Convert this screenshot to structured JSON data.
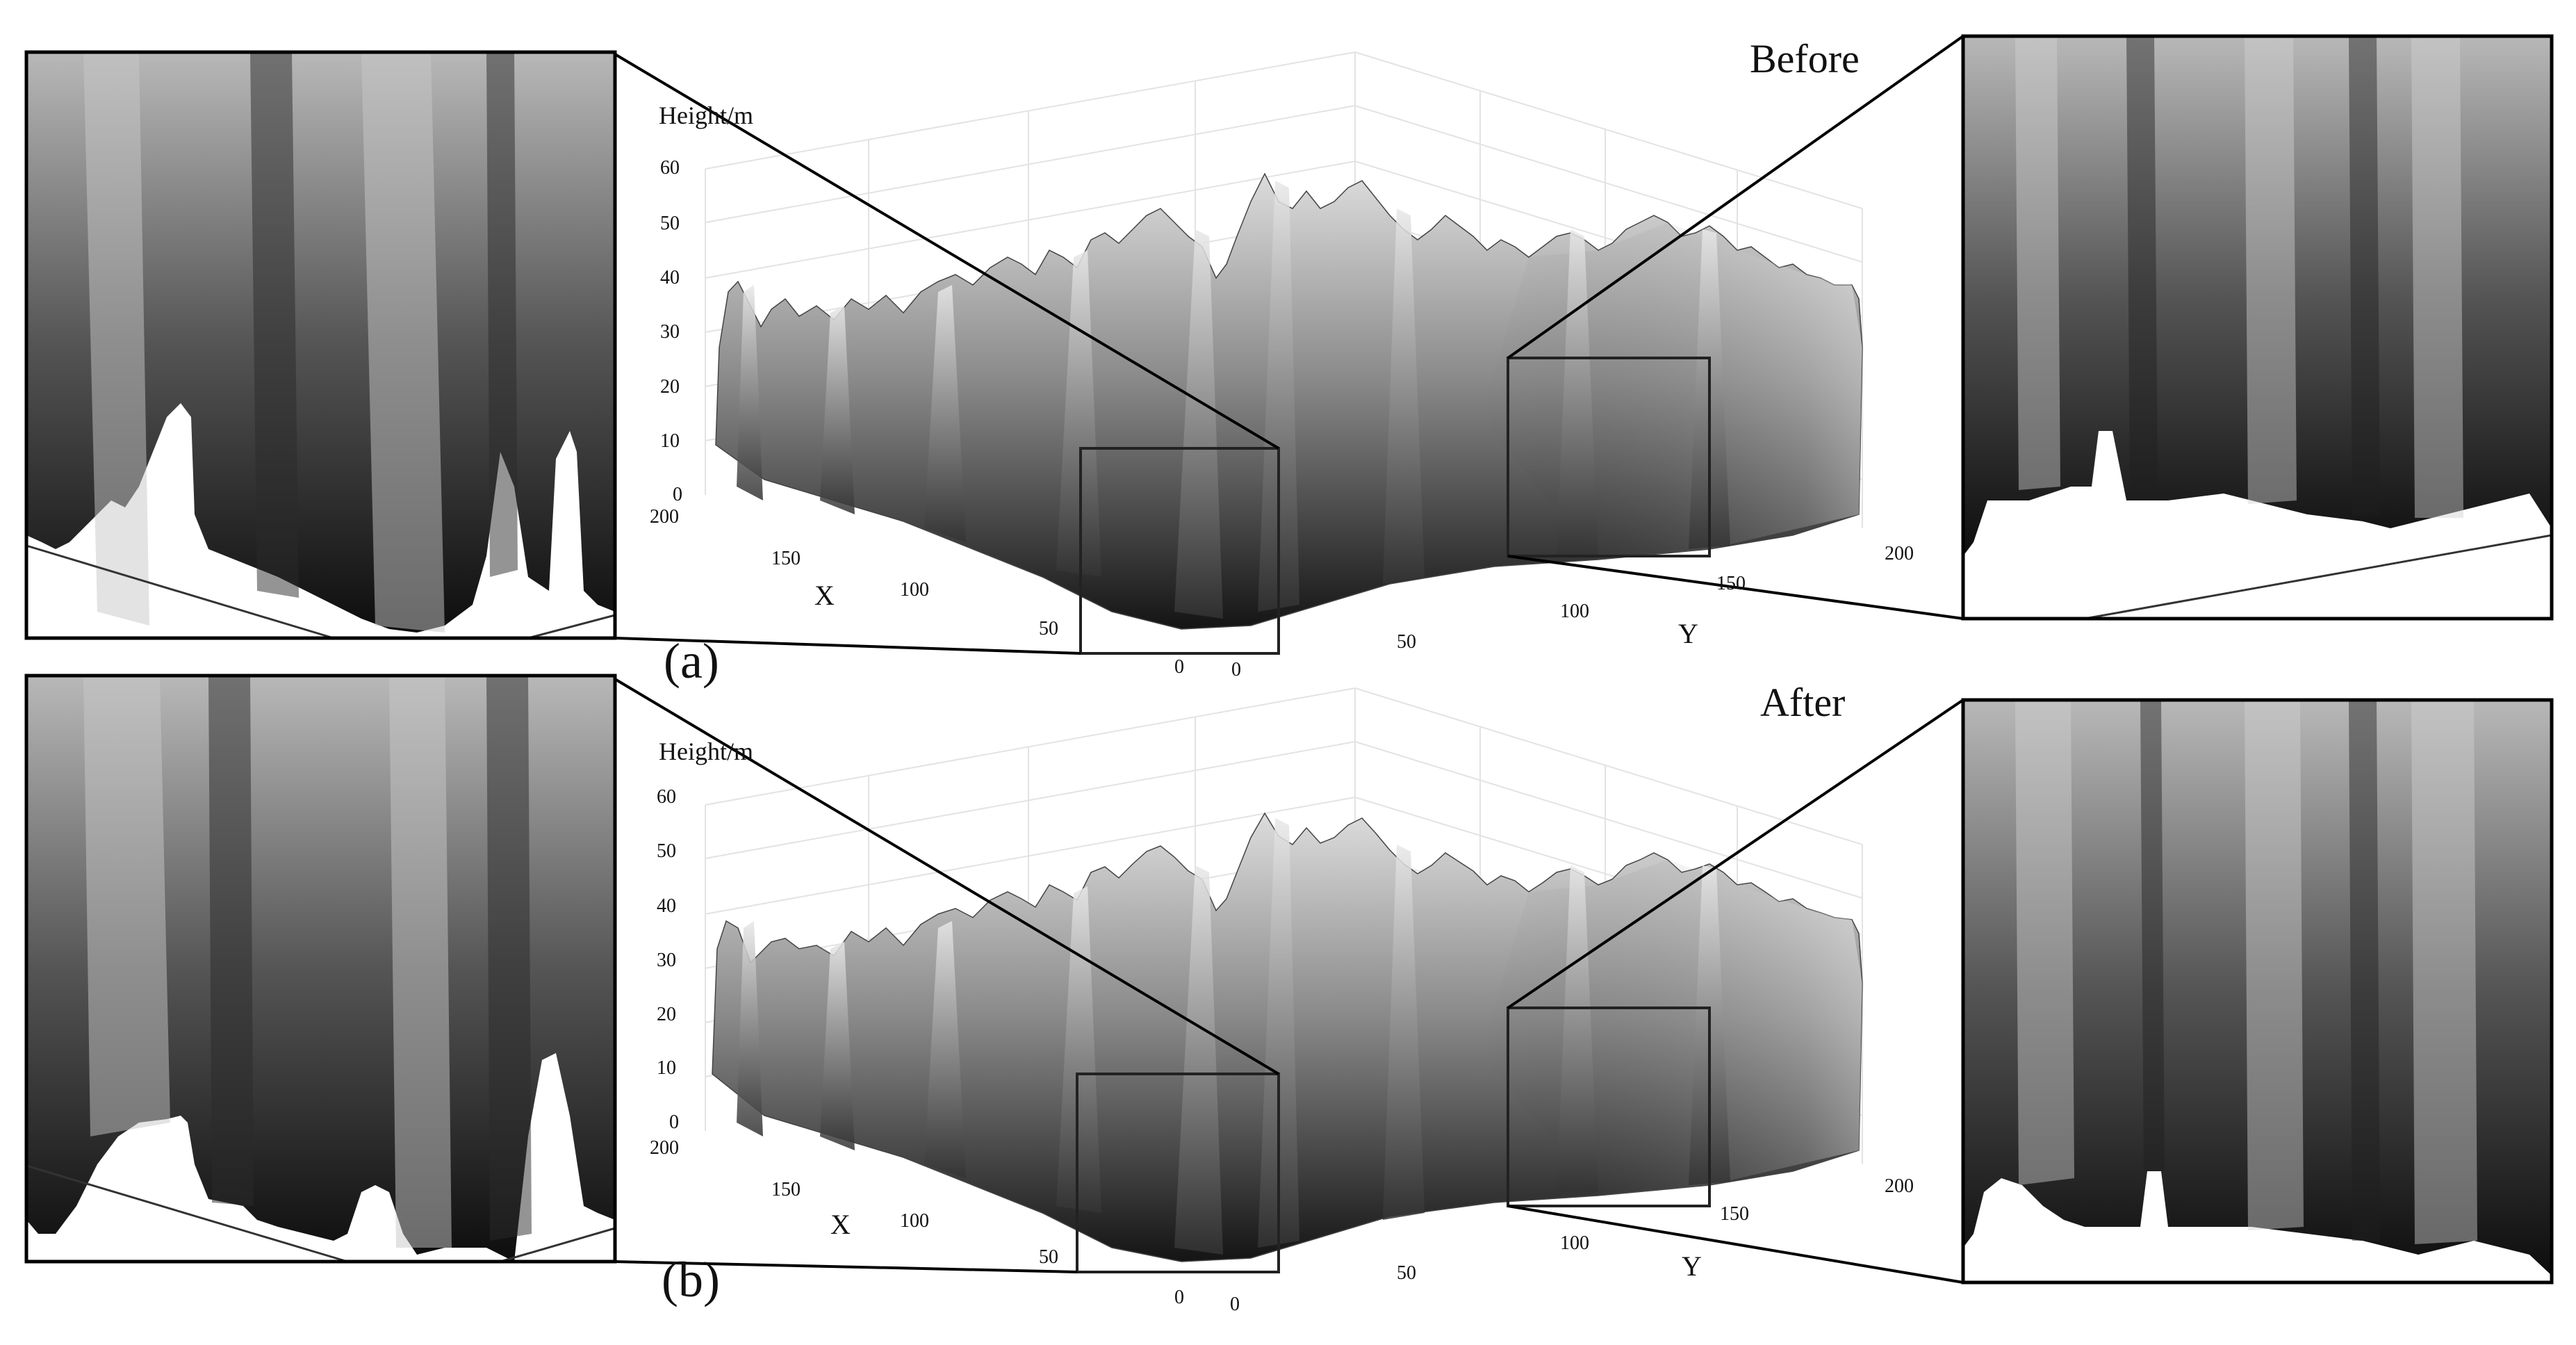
{
  "colors": {
    "background": "#ffffff",
    "frame": "#000000",
    "grid": "#e3e3e3",
    "axis": "#7a7a7a",
    "surface_dark": "#101010",
    "surface_light": "#f0f0f0"
  },
  "chart_data": [
    {
      "type": "surface",
      "panel_label": "(a)",
      "title": "Before",
      "zlabel": "Height/m",
      "xlabel": "X",
      "ylabel": "Y",
      "zlim": [
        0,
        60
      ],
      "xlim": [
        0,
        200
      ],
      "ylim": [
        0,
        200
      ],
      "z_ticks": [
        "60",
        "50",
        "40",
        "30",
        "20",
        "10",
        "0"
      ],
      "x_ticks": [
        "200",
        "150",
        "100",
        "50",
        "0"
      ],
      "y_ticks": [
        "0",
        "50",
        "100",
        "150",
        "200"
      ],
      "grid": true,
      "zoom_insets": [
        "left",
        "right"
      ]
    },
    {
      "type": "surface",
      "panel_label": "(b)",
      "title": "After",
      "zlabel": "Height/m",
      "xlabel": "X",
      "ylabel": "Y",
      "zlim": [
        0,
        60
      ],
      "xlim": [
        0,
        200
      ],
      "ylim": [
        0,
        200
      ],
      "z_ticks": [
        "60",
        "50",
        "40",
        "30",
        "20",
        "10",
        "0"
      ],
      "x_ticks": [
        "200",
        "150",
        "100",
        "50",
        "0"
      ],
      "y_ticks": [
        "0",
        "50",
        "100",
        "150",
        "200"
      ],
      "grid": true,
      "zoom_insets": [
        "left",
        "right"
      ]
    }
  ]
}
